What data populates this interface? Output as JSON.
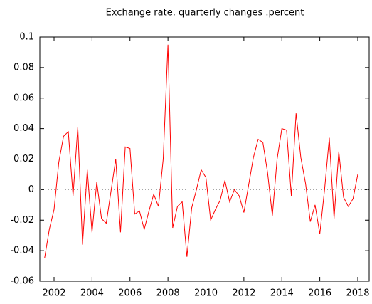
{
  "chart_data": {
    "type": "line",
    "title": "Exchange rate. quarterly changes .percent",
    "x": [
      2001.5,
      2001.75,
      2002,
      2002.25,
      2002.5,
      2002.75,
      2003,
      2003.25,
      2003.5,
      2003.75,
      2004,
      2004.25,
      2004.5,
      2004.75,
      2005,
      2005.25,
      2005.5,
      2005.75,
      2006,
      2006.25,
      2006.5,
      2006.75,
      2007,
      2007.25,
      2007.5,
      2007.75,
      2008,
      2008.25,
      2008.5,
      2008.75,
      2009,
      2009.25,
      2009.5,
      2009.75,
      2010,
      2010.25,
      2010.5,
      2010.75,
      2011,
      2011.25,
      2011.5,
      2011.75,
      2012,
      2012.25,
      2012.5,
      2012.75,
      2013,
      2013.25,
      2013.5,
      2013.75,
      2014,
      2014.25,
      2014.5,
      2014.75,
      2015,
      2015.25,
      2015.5,
      2015.75,
      2016,
      2016.25,
      2016.5,
      2016.75,
      2017,
      2017.25,
      2017.5,
      2017.75,
      2018
    ],
    "series": [
      {
        "name": "Exchange rate",
        "color": "#ff0000",
        "values": [
          -0.045,
          -0.026,
          -0.013,
          0.018,
          0.035,
          0.038,
          -0.004,
          0.041,
          -0.036,
          0.013,
          -0.028,
          0.005,
          -0.019,
          -0.022,
          -0.001,
          0.02,
          -0.028,
          0.028,
          0.027,
          -0.016,
          -0.014,
          -0.026,
          -0.014,
          -0.003,
          -0.011,
          0.02,
          0.095,
          -0.025,
          -0.011,
          -0.008,
          -0.044,
          -0.012,
          0.0,
          0.013,
          0.008,
          -0.02,
          -0.013,
          -0.007,
          0.006,
          -0.008,
          0.0,
          -0.004,
          -0.015,
          0.003,
          0.021,
          0.033,
          0.031,
          0.011,
          -0.017,
          0.02,
          0.04,
          0.039,
          -0.004,
          0.05,
          0.021,
          0.004,
          -0.021,
          -0.01,
          -0.029,
          0.0,
          0.034,
          -0.019,
          0.025,
          -0.005,
          -0.011,
          -0.006,
          0.01
        ]
      }
    ],
    "xlim": [
      2001.25,
      2018.6
    ],
    "xticks": [
      2002,
      2004,
      2006,
      2008,
      2010,
      2012,
      2014,
      2016,
      2018
    ],
    "ylim": [
      -0.06,
      0.1
    ],
    "yticks": [
      -0.06,
      -0.04,
      -0.02,
      0,
      0.02,
      0.04,
      0.06,
      0.08,
      0.1
    ],
    "zero_line": true
  }
}
